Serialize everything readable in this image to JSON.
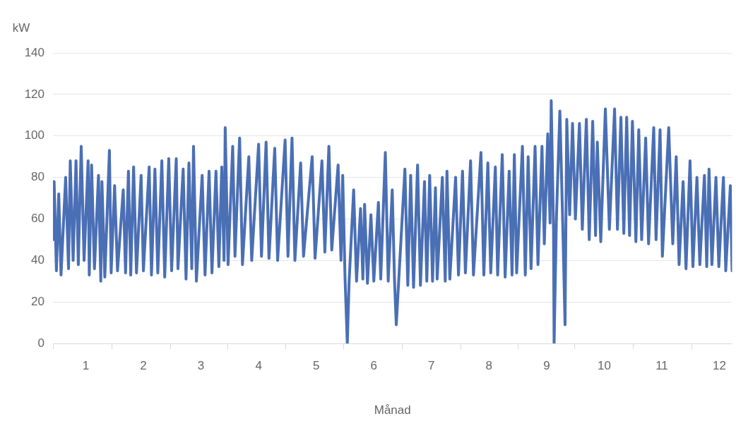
{
  "chart_data": {
    "type": "line",
    "xlabel": "Månad",
    "ylabel": "kW",
    "grid": "y",
    "legend": false,
    "marker": "none",
    "line_style": "solid",
    "xlim": [
      0.43,
      12.22
    ],
    "xticks": [
      {
        "value": 0.43,
        "label": null
      },
      {
        "value": 1,
        "label": "1"
      },
      {
        "value": 1.45,
        "label": null
      },
      {
        "value": 2,
        "label": "2"
      },
      {
        "value": 2.47,
        "label": null
      },
      {
        "value": 3,
        "label": "3"
      },
      {
        "value": 3.46,
        "label": null
      },
      {
        "value": 4,
        "label": "4"
      },
      {
        "value": 4.47,
        "label": null
      },
      {
        "value": 5,
        "label": "5"
      },
      {
        "value": 5.48,
        "label": null
      },
      {
        "value": 6,
        "label": "6"
      },
      {
        "value": 6.49,
        "label": null
      },
      {
        "value": 7,
        "label": "7"
      },
      {
        "value": 7.51,
        "label": null
      },
      {
        "value": 8,
        "label": "8"
      },
      {
        "value": 8.51,
        "label": null
      },
      {
        "value": 9,
        "label": "9"
      },
      {
        "value": 9.49,
        "label": null
      },
      {
        "value": 10,
        "label": "10"
      },
      {
        "value": 10.5,
        "label": null
      },
      {
        "value": 11,
        "label": "11"
      },
      {
        "value": 11.52,
        "label": null
      },
      {
        "value": 12,
        "label": "12"
      }
    ],
    "ylim": [
      0,
      140
    ],
    "yticks": [
      0,
      20,
      40,
      60,
      80,
      100,
      120,
      140
    ],
    "series": [
      {
        "color": "#4a6fb5",
        "x": [
          0.43,
          0.45,
          0.49,
          0.53,
          0.57,
          0.65,
          0.7,
          0.73,
          0.78,
          0.83,
          0.87,
          0.92,
          0.97,
          1.04,
          1.06,
          1.1,
          1.15,
          1.22,
          1.26,
          1.28,
          1.33,
          1.41,
          1.44,
          1.5,
          1.55,
          1.65,
          1.69,
          1.74,
          1.78,
          1.83,
          1.88,
          1.96,
          2.0,
          2.1,
          2.14,
          2.2,
          2.25,
          2.32,
          2.37,
          2.44,
          2.49,
          2.57,
          2.6,
          2.69,
          2.74,
          2.79,
          2.84,
          2.87,
          2.92,
          3.02,
          3.07,
          3.14,
          3.19,
          3.26,
          3.31,
          3.36,
          3.4,
          3.42,
          3.47,
          3.55,
          3.59,
          3.67,
          3.72,
          3.83,
          3.88,
          4.0,
          4.05,
          4.13,
          4.18,
          4.28,
          4.33,
          4.46,
          4.51,
          4.58,
          4.63,
          4.73,
          4.78,
          4.93,
          4.98,
          5.1,
          5.15,
          5.22,
          5.27,
          5.38,
          5.43,
          5.46,
          5.5,
          5.54,
          5.57,
          5.65,
          5.7,
          5.77,
          5.81,
          5.84,
          5.89,
          5.95,
          6.0,
          6.08,
          6.12,
          6.2,
          6.25,
          6.32,
          6.36,
          6.39,
          6.43,
          6.54,
          6.59,
          6.64,
          6.69,
          6.76,
          6.81,
          6.88,
          6.92,
          6.97,
          7.02,
          7.07,
          7.1,
          7.19,
          7.24,
          7.27,
          7.32,
          7.42,
          7.47,
          7.54,
          7.59,
          7.68,
          7.73,
          7.86,
          7.91,
          7.98,
          8.03,
          8.11,
          8.15,
          8.23,
          8.28,
          8.35,
          8.4,
          8.44,
          8.48,
          8.58,
          8.63,
          8.68,
          8.73,
          8.8,
          8.85,
          8.92,
          8.96,
          9.02,
          9.06,
          9.08,
          9.12,
          9.13,
          9.17,
          9.23,
          9.28,
          9.32,
          9.35,
          9.4,
          9.45,
          9.5,
          9.57,
          9.62,
          9.69,
          9.74,
          9.8,
          9.85,
          9.88,
          9.94,
          10.02,
          10.09,
          10.18,
          10.23,
          10.29,
          10.34,
          10.39,
          10.44,
          10.49,
          10.55,
          10.6,
          10.65,
          10.72,
          10.77,
          10.86,
          10.9,
          10.97,
          11.01,
          11.12,
          11.19,
          11.25,
          11.3,
          11.37,
          11.42,
          11.49,
          11.54,
          11.61,
          11.66,
          11.74,
          11.78,
          11.82,
          11.87,
          11.94,
          11.99,
          12.07,
          12.11,
          12.19,
          12.22
        ],
        "values": [
          50,
          78,
          35,
          72,
          33,
          80,
          36,
          88,
          40,
          88,
          38,
          95,
          40,
          88,
          33,
          86,
          36,
          81,
          30,
          78,
          32,
          93,
          34,
          76,
          35,
          74,
          34,
          83,
          33,
          85,
          34,
          81,
          35,
          85,
          33,
          84,
          34,
          88,
          32,
          89,
          35,
          89,
          36,
          84,
          31,
          87,
          36,
          95,
          30,
          81,
          33,
          83,
          34,
          83,
          37,
          85,
          40,
          104,
          38,
          95,
          42,
          99,
          38,
          90,
          40,
          96,
          42,
          97,
          41,
          94,
          40,
          98,
          42,
          99,
          40,
          87,
          42,
          90,
          41,
          88,
          44,
          95,
          45,
          86,
          40,
          81,
          32,
          0,
          29,
          74,
          30,
          65,
          31,
          67,
          29,
          62,
          30,
          68,
          31,
          92,
          30,
          74,
          30,
          9,
          29,
          84,
          28,
          81,
          27,
          86,
          28,
          78,
          30,
          81,
          30,
          75,
          31,
          80,
          30,
          83,
          31,
          80,
          33,
          83,
          34,
          88,
          33,
          92,
          33,
          87,
          34,
          85,
          33,
          91,
          32,
          83,
          33,
          91,
          34,
          95,
          33,
          90,
          36,
          95,
          38,
          95,
          48,
          101,
          58,
          117,
          55,
          0,
          60,
          112,
          58,
          9,
          108,
          62,
          106,
          60,
          106,
          55,
          108,
          50,
          107,
          52,
          97,
          49,
          113,
          55,
          113,
          55,
          109,
          53,
          109,
          52,
          107,
          49,
          103,
          50,
          99,
          48,
          104,
          50,
          103,
          42,
          104,
          48,
          90,
          38,
          78,
          36,
          88,
          37,
          80,
          38,
          81,
          37,
          84,
          38,
          80,
          37,
          80,
          35,
          76,
          35
        ]
      }
    ]
  }
}
